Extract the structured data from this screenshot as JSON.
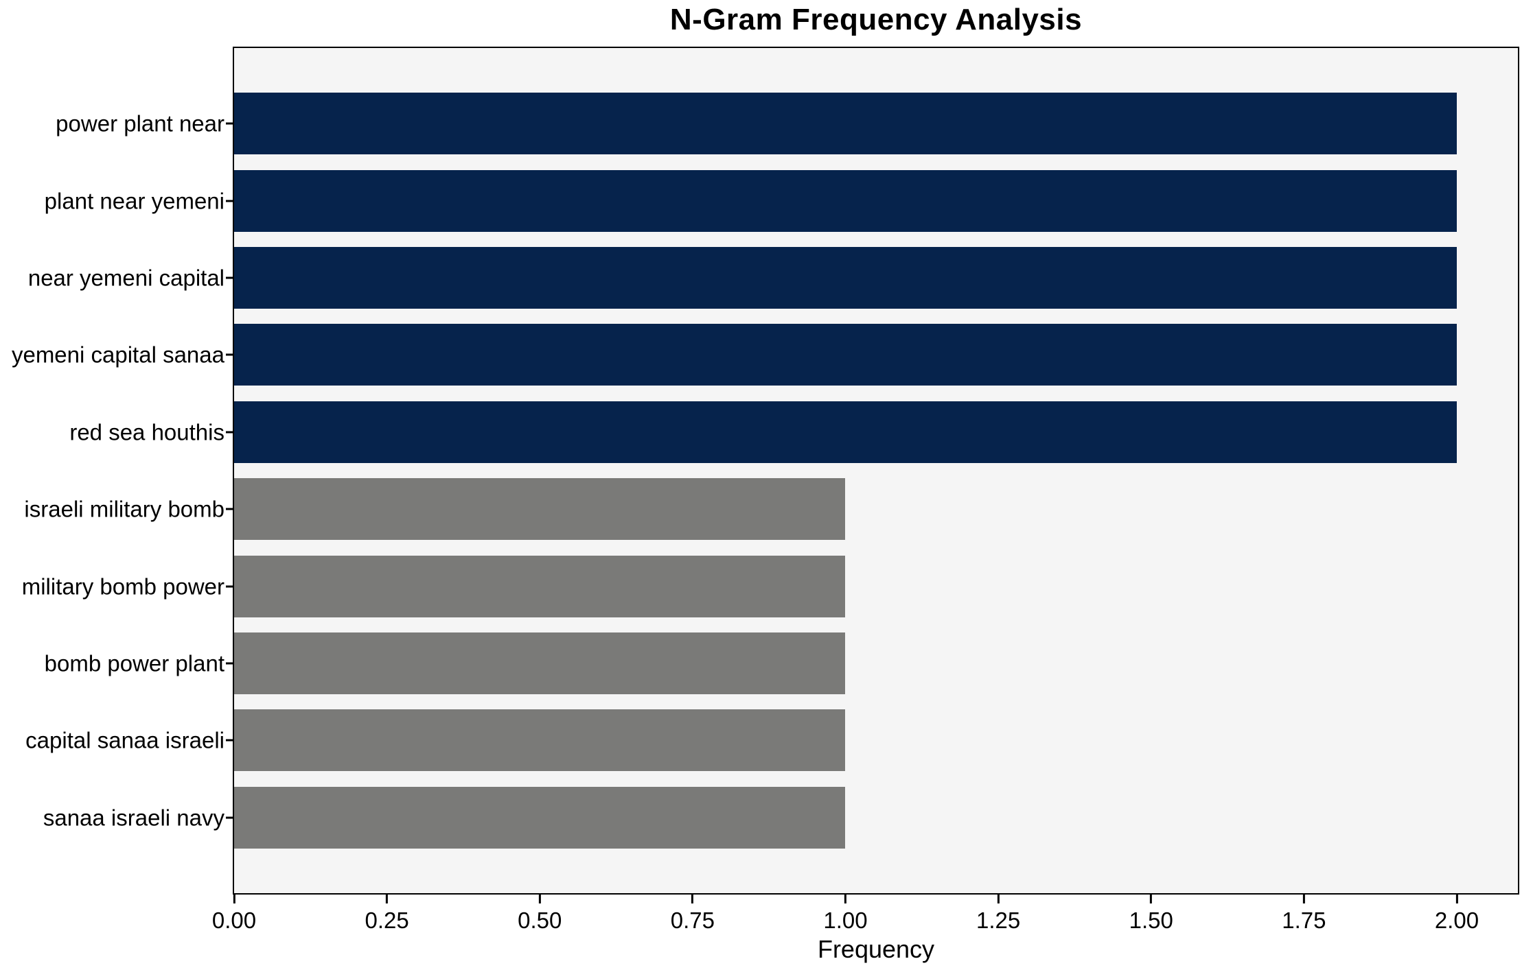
{
  "title": "N-Gram Frequency Analysis",
  "colors": {
    "navy_bar": "#06234c",
    "gray_bar": "#7a7a78",
    "plot_background": "#f5f5f5",
    "figure_background": "#ffffff",
    "spine": "#000000",
    "text": "#000000"
  },
  "chart_data": {
    "type": "bar",
    "orientation": "horizontal",
    "title": "N-Gram Frequency Analysis",
    "xlabel": "Frequency",
    "ylabel": "",
    "xlim": [
      0,
      2.1
    ],
    "grid": false,
    "legend": null,
    "plot_bg": "#f5f5f5",
    "categories": [
      "power plant near",
      "plant near yemeni",
      "near yemeni capital",
      "yemeni capital sanaa",
      "red sea houthis",
      "israeli military bomb",
      "military bomb power",
      "bomb power plant",
      "capital sanaa israeli",
      "sanaa israeli navy"
    ],
    "values": [
      2,
      2,
      2,
      2,
      2,
      1,
      1,
      1,
      1,
      1
    ],
    "bars": [
      {
        "label": "power plant near",
        "value": 2,
        "color": "#06234c"
      },
      {
        "label": "plant near yemeni",
        "value": 2,
        "color": "#06234c"
      },
      {
        "label": "near yemeni capital",
        "value": 2,
        "color": "#06234c"
      },
      {
        "label": "yemeni capital sanaa",
        "value": 2,
        "color": "#06234c"
      },
      {
        "label": "red sea houthis",
        "value": 2,
        "color": "#06234c"
      },
      {
        "label": "israeli military bomb",
        "value": 1,
        "color": "#7a7a78"
      },
      {
        "label": "military bomb power",
        "value": 1,
        "color": "#7a7a78"
      },
      {
        "label": "bomb power plant",
        "value": 1,
        "color": "#7a7a78"
      },
      {
        "label": "capital sanaa israeli",
        "value": 1,
        "color": "#7a7a78"
      },
      {
        "label": "sanaa israeli navy",
        "value": 1,
        "color": "#7a7a78"
      }
    ],
    "xticks": [
      {
        "value": 0.0,
        "label": "0.00"
      },
      {
        "value": 0.25,
        "label": "0.25"
      },
      {
        "value": 0.5,
        "label": "0.50"
      },
      {
        "value": 0.75,
        "label": "0.75"
      },
      {
        "value": 1.0,
        "label": "1.00"
      },
      {
        "value": 1.25,
        "label": "1.25"
      },
      {
        "value": 1.5,
        "label": "1.50"
      },
      {
        "value": 1.75,
        "label": "1.75"
      },
      {
        "value": 2.0,
        "label": "2.00"
      }
    ]
  }
}
